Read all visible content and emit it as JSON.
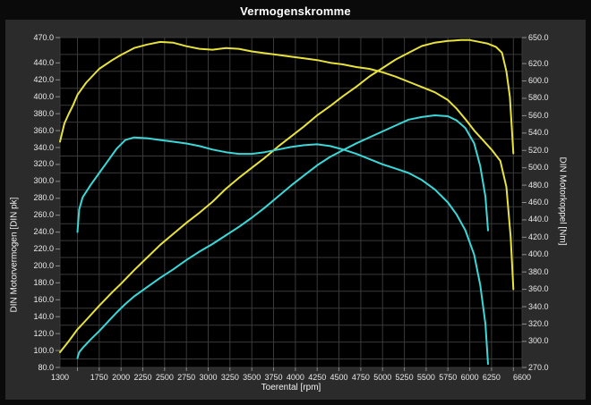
{
  "title": "Vermogenskromme",
  "chart_data": {
    "type": "line",
    "title": "Vermogenskromme",
    "xlabel": "Toerental [rpm]",
    "ylabel_left": "DIN Motorvermogen [DIN pk]",
    "ylabel_right": "DIN Motorkoppel [Nm]",
    "grid": true,
    "legend": false,
    "plot_bg": "#000000",
    "grid_color": "#3a3a3a",
    "tick_color": "#8d8d8d",
    "x_axis": {
      "min": 1300,
      "max": 6600,
      "tick_labels": [
        "1300",
        "1750",
        "2000",
        "2250",
        "2500",
        "2750",
        "3000",
        "3250",
        "3500",
        "3750",
        "4000",
        "4250",
        "4500",
        "4750",
        "5000",
        "5250",
        "5500",
        "5750",
        "6000",
        "6250",
        "6600"
      ],
      "grid_start": 1500,
      "grid_end": 6500,
      "grid_step": 250
    },
    "left_axis": {
      "min": 80,
      "max": 470,
      "tick_labels": [
        "470.0",
        "440.0",
        "420.0",
        "400.0",
        "380.0",
        "360.0",
        "340.0",
        "320.0",
        "300.0",
        "280.0",
        "260.0",
        "240.0",
        "220.0",
        "200.0",
        "180.0",
        "160.0",
        "140.0",
        "120.0",
        "100.0",
        "80.0"
      ]
    },
    "right_axis": {
      "min": 270,
      "max": 650,
      "tick_labels": [
        "650.0",
        "620.0",
        "600.0",
        "580.0",
        "560.0",
        "540.0",
        "520.0",
        "500.0",
        "480.0",
        "460.0",
        "440.0",
        "420.0",
        "400.0",
        "380.0",
        "360.0",
        "340.0",
        "320.0",
        "300.0",
        "270.0"
      ]
    },
    "series": [
      {
        "name": "yellow-power",
        "axis": "left",
        "color": "#e8e23c",
        "points": [
          [
            1300,
            98
          ],
          [
            1400,
            111
          ],
          [
            1500,
            125
          ],
          [
            1600,
            136
          ],
          [
            1750,
            153
          ],
          [
            1900,
            169
          ],
          [
            2000,
            179
          ],
          [
            2150,
            195
          ],
          [
            2300,
            210
          ],
          [
            2450,
            225
          ],
          [
            2600,
            238
          ],
          [
            2750,
            251
          ],
          [
            2900,
            263
          ],
          [
            3050,
            276
          ],
          [
            3200,
            291
          ],
          [
            3350,
            304
          ],
          [
            3500,
            316
          ],
          [
            3650,
            328
          ],
          [
            3800,
            341
          ],
          [
            3950,
            353
          ],
          [
            4100,
            365
          ],
          [
            4250,
            378
          ],
          [
            4400,
            389
          ],
          [
            4550,
            401
          ],
          [
            4700,
            412
          ],
          [
            4850,
            424
          ],
          [
            5000,
            434
          ],
          [
            5150,
            444
          ],
          [
            5300,
            452
          ],
          [
            5450,
            460
          ],
          [
            5600,
            464
          ],
          [
            5750,
            466
          ],
          [
            5900,
            467
          ],
          [
            6000,
            467
          ],
          [
            6100,
            465
          ],
          [
            6200,
            463
          ],
          [
            6300,
            459
          ],
          [
            6370,
            452
          ],
          [
            6420,
            430
          ],
          [
            6460,
            400
          ],
          [
            6500,
            333
          ]
        ]
      },
      {
        "name": "yellow-torque",
        "axis": "right",
        "color": "#e8e23c",
        "points": [
          [
            1300,
            530
          ],
          [
            1350,
            551
          ],
          [
            1400,
            562
          ],
          [
            1450,
            572
          ],
          [
            1500,
            584
          ],
          [
            1600,
            598
          ],
          [
            1750,
            614
          ],
          [
            1900,
            624
          ],
          [
            2000,
            630
          ],
          [
            2150,
            638
          ],
          [
            2300,
            642
          ],
          [
            2450,
            645
          ],
          [
            2600,
            644
          ],
          [
            2750,
            640
          ],
          [
            2900,
            637
          ],
          [
            3050,
            636
          ],
          [
            3200,
            638
          ],
          [
            3350,
            637
          ],
          [
            3500,
            634
          ],
          [
            3650,
            632
          ],
          [
            3800,
            630
          ],
          [
            3950,
            628
          ],
          [
            4100,
            626
          ],
          [
            4250,
            624
          ],
          [
            4400,
            621
          ],
          [
            4550,
            619
          ],
          [
            4700,
            616
          ],
          [
            4850,
            614
          ],
          [
            5000,
            610
          ],
          [
            5150,
            605
          ],
          [
            5300,
            599
          ],
          [
            5450,
            593
          ],
          [
            5600,
            587
          ],
          [
            5750,
            578
          ],
          [
            5850,
            568
          ],
          [
            5950,
            556
          ],
          [
            6050,
            543
          ],
          [
            6150,
            532
          ],
          [
            6250,
            521
          ],
          [
            6350,
            508
          ],
          [
            6420,
            478
          ],
          [
            6470,
            420
          ],
          [
            6500,
            360
          ]
        ]
      },
      {
        "name": "cyan-power",
        "axis": "left",
        "color": "#3ad8d8",
        "points": [
          [
            1500,
            91
          ],
          [
            1520,
            98
          ],
          [
            1560,
            103
          ],
          [
            1650,
            113
          ],
          [
            1750,
            123
          ],
          [
            1850,
            134
          ],
          [
            1950,
            145
          ],
          [
            2050,
            155
          ],
          [
            2150,
            164
          ],
          [
            2300,
            175
          ],
          [
            2450,
            186
          ],
          [
            2600,
            196
          ],
          [
            2750,
            207
          ],
          [
            2900,
            217
          ],
          [
            3050,
            226
          ],
          [
            3200,
            236
          ],
          [
            3350,
            246
          ],
          [
            3500,
            257
          ],
          [
            3650,
            269
          ],
          [
            3800,
            282
          ],
          [
            3950,
            295
          ],
          [
            4100,
            307
          ],
          [
            4250,
            319
          ],
          [
            4400,
            329
          ],
          [
            4550,
            337
          ],
          [
            4700,
            345
          ],
          [
            4850,
            352
          ],
          [
            5000,
            359
          ],
          [
            5150,
            366
          ],
          [
            5300,
            373
          ],
          [
            5450,
            376
          ],
          [
            5600,
            378
          ],
          [
            5750,
            377
          ],
          [
            5850,
            372
          ],
          [
            5950,
            363
          ],
          [
            6050,
            345
          ],
          [
            6120,
            318
          ],
          [
            6180,
            282
          ],
          [
            6210,
            242
          ]
        ]
      },
      {
        "name": "cyan-torque",
        "axis": "right",
        "color": "#3ad8d8",
        "points": [
          [
            1500,
            426
          ],
          [
            1520,
            452
          ],
          [
            1560,
            466
          ],
          [
            1650,
            480
          ],
          [
            1750,
            494
          ],
          [
            1850,
            508
          ],
          [
            1950,
            522
          ],
          [
            2050,
            532
          ],
          [
            2150,
            535
          ],
          [
            2300,
            534
          ],
          [
            2450,
            532
          ],
          [
            2600,
            530
          ],
          [
            2750,
            528
          ],
          [
            2900,
            525
          ],
          [
            3050,
            521
          ],
          [
            3200,
            518
          ],
          [
            3350,
            516
          ],
          [
            3500,
            516
          ],
          [
            3650,
            518
          ],
          [
            3800,
            521
          ],
          [
            3950,
            524
          ],
          [
            4100,
            526
          ],
          [
            4250,
            527
          ],
          [
            4400,
            525
          ],
          [
            4550,
            521
          ],
          [
            4700,
            516
          ],
          [
            4850,
            510
          ],
          [
            5000,
            504
          ],
          [
            5150,
            499
          ],
          [
            5300,
            494
          ],
          [
            5450,
            486
          ],
          [
            5600,
            475
          ],
          [
            5750,
            460
          ],
          [
            5850,
            446
          ],
          [
            5950,
            428
          ],
          [
            6050,
            400
          ],
          [
            6120,
            365
          ],
          [
            6180,
            320
          ],
          [
            6210,
            274
          ]
        ]
      }
    ]
  }
}
